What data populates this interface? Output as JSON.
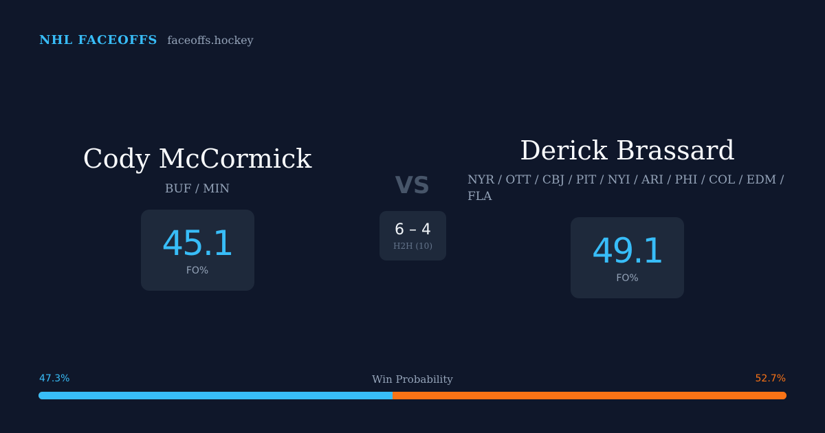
{
  "brand": {
    "name": "NHL FACEOFFS",
    "domain": "faceoffs.hockey"
  },
  "player_left": {
    "name": "Cody McCormick",
    "teams": "BUF / MIN",
    "fo_value": "45.1",
    "fo_label": "FO%"
  },
  "player_right": {
    "name": "Derick Brassard",
    "teams": "NYR / OTT / CBJ / PIT / NYI / ARI / PHI / COL / EDM / FLA",
    "fo_value": "49.1",
    "fo_label": "FO%"
  },
  "versus": {
    "label": "VS",
    "h2h_score": "6 – 4",
    "h2h_label": "H2H (10)"
  },
  "win_probability": {
    "title": "Win Probability",
    "left_label": "47.3%",
    "right_label": "52.7%",
    "left_fraction": 0.473,
    "right_fraction": 0.527
  },
  "colors": {
    "background": "#0f172a",
    "card": "#1e293b",
    "accent_blue": "#38bdf8",
    "accent_orange": "#f97316",
    "muted_text": "#94a3b8"
  }
}
